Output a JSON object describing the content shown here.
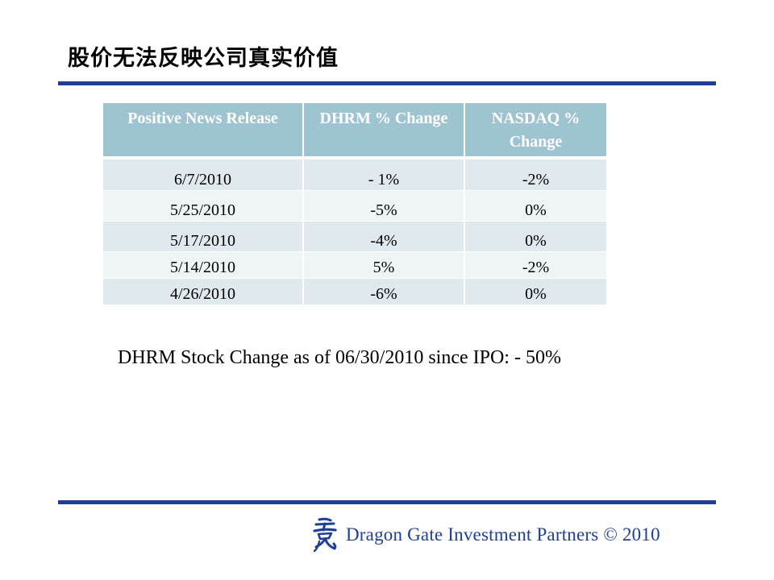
{
  "title": "股价无法反映公司真实价值",
  "table": {
    "headers": [
      "Positive News Release",
      "DHRM % Change",
      "NASDAQ % Change"
    ],
    "rows": [
      [
        "6/7/2010",
        "- 1%",
        "-2%"
      ],
      [
        "5/25/2010",
        "-5%",
        "0%"
      ],
      [
        "5/17/2010",
        "-4%",
        "0%"
      ],
      [
        "5/14/2010",
        "5%",
        "-2%"
      ],
      [
        "4/26/2010",
        "-6%",
        "0%"
      ]
    ]
  },
  "summary": "DHRM Stock Change as of 06/30/2010 since IPO: - 50%",
  "footer": {
    "logo_icon": "dragon-logo-icon",
    "text": "Dragon Gate Investment Partners © 2010"
  },
  "colors": {
    "rule": "#1f3f97",
    "header_bg": "#9fc4d1",
    "row_odd": "#dfe9ee",
    "row_even": "#eff5f7",
    "footer_text": "#1f3f97"
  }
}
